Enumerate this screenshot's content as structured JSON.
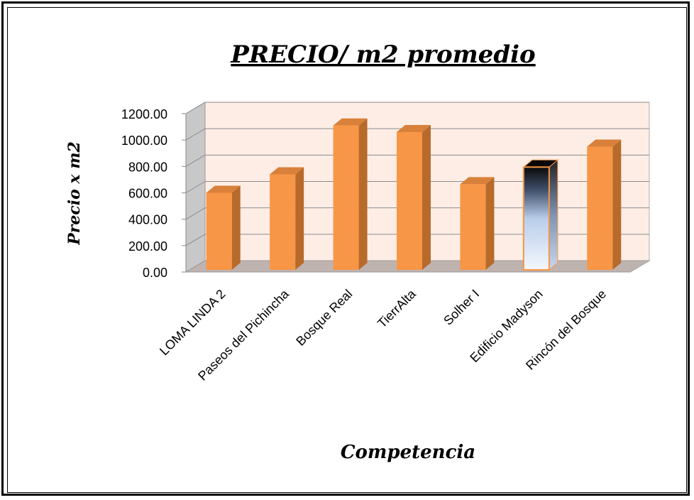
{
  "chart_data": {
    "type": "bar",
    "title": "PRECIO/ m2 promedio",
    "xlabel": "Competencia",
    "ylabel": "Precio x m2",
    "categories": [
      "LOMA LINDA 2",
      "Paseos del Pichincha",
      "Bosque Real",
      "TierrAlta",
      "Solher I",
      "Edificio Madyson",
      "Rincón del Bosque"
    ],
    "values": [
      600,
      740,
      1110,
      1060,
      665,
      795,
      950
    ],
    "highlight_index": 5,
    "ylim": [
      0,
      1200
    ],
    "yticks": [
      "0.00",
      "200.00",
      "400.00",
      "600.00",
      "800.00",
      "1000.00",
      "1200.00"
    ],
    "grid": true,
    "legend": "none",
    "colors": {
      "bar_front": "#F79646",
      "bar_side": "#B86A2A",
      "bar_top": "#D9803A",
      "wall": "#FDEDE5",
      "floor": "#BFB3B0",
      "grid": "#8C8C8C"
    }
  }
}
